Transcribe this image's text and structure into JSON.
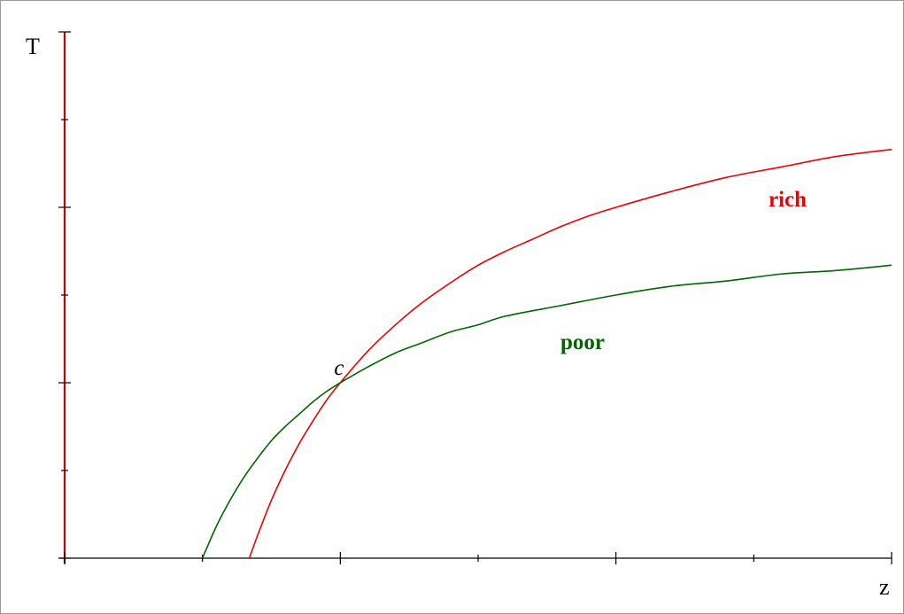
{
  "chart_data": {
    "type": "line",
    "xlabel": "z",
    "ylabel": "T",
    "xlim": [
      0,
      3
    ],
    "ylim": [
      0,
      3
    ],
    "x_ticks": [
      0,
      0.5,
      1,
      1.5,
      2,
      2.5,
      3
    ],
    "y_ticks": [
      0,
      0.5,
      1,
      1.5,
      2,
      2.5,
      3
    ],
    "grid": false,
    "axis_color": "#cc0000",
    "series": [
      {
        "name": "rich",
        "color": "#ee0000",
        "x": [
          0.67,
          0.7,
          0.75,
          0.8,
          0.85,
          0.9,
          0.95,
          1.0,
          1.1,
          1.2,
          1.3,
          1.4,
          1.5,
          1.6,
          1.7,
          1.8,
          1.9,
          2.0,
          2.2,
          2.4,
          2.6,
          2.8,
          3.0
        ],
        "y": [
          0.0,
          0.13,
          0.33,
          0.5,
          0.65,
          0.78,
          0.9,
          1.0,
          1.18,
          1.33,
          1.46,
          1.57,
          1.67,
          1.75,
          1.82,
          1.89,
          1.95,
          2.0,
          2.09,
          2.17,
          2.23,
          2.29,
          2.33
        ]
      },
      {
        "name": "poor",
        "color": "#006600",
        "x": [
          0.5,
          0.55,
          0.6,
          0.65,
          0.7,
          0.75,
          0.8,
          0.85,
          0.9,
          0.95,
          1.0,
          1.1,
          1.2,
          1.3,
          1.4,
          1.5,
          1.6,
          1.8,
          2.0,
          2.2,
          2.4,
          2.6,
          2.8,
          3.0
        ],
        "y": [
          0.0,
          0.18,
          0.33,
          0.46,
          0.57,
          0.67,
          0.75,
          0.82,
          0.89,
          0.95,
          1.0,
          1.09,
          1.17,
          1.23,
          1.29,
          1.33,
          1.38,
          1.44,
          1.5,
          1.55,
          1.58,
          1.62,
          1.64,
          1.67
        ]
      }
    ],
    "annotations": [
      {
        "text": "c",
        "x": 1.0,
        "y": 1.0
      }
    ]
  }
}
